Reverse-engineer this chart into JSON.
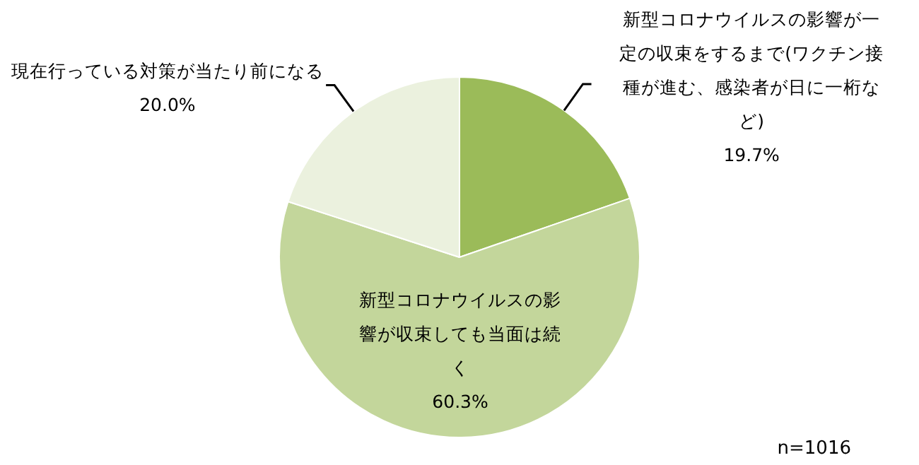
{
  "chart_data": {
    "type": "pie",
    "categories": [
      "新型コロナウイルスの影響が一定の収束をするまで(ワクチン接種が進む、感染者が日に一桁など)",
      "新型コロナウイルスの影響が収束しても当面は続く",
      "現在行っている対策が当たり前になる"
    ],
    "values": [
      19.7,
      60.3,
      20.0
    ],
    "colors": [
      "#9bbb59",
      "#c3d69b",
      "#ebf1de"
    ],
    "value_labels": [
      "19.7%",
      "60.3%",
      "20.0%"
    ],
    "legend": false,
    "annotations": [
      "n=1016"
    ]
  }
}
